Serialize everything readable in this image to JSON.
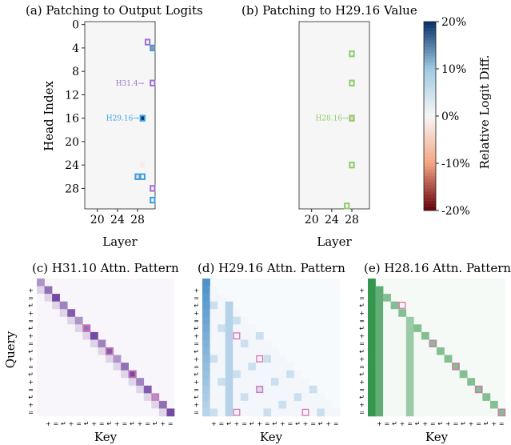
{
  "colors": {
    "background_cell": "#f6f6f6",
    "positive_max": "#08306b",
    "negative_max": "#67000d",
    "purple_box": "#a070d0",
    "blue_box": "#3aa0e0",
    "green_box": "#8ccc6a",
    "pink_box": "#e070b0",
    "purple_map": "#4a1486",
    "blue_map": "#2f7fc0",
    "green_map": "#1f8a3a"
  },
  "chart_data": [
    {
      "type": "heatmap",
      "title": "(a) Patching to Output Logits",
      "xlabel": "Layer",
      "ylabel": "Head Index",
      "xticks": [
        20,
        24,
        28
      ],
      "yticks": [
        0,
        4,
        8,
        12,
        16,
        20,
        24,
        28
      ],
      "xlim": [
        18,
        31
      ],
      "ylim": [
        0,
        31
      ],
      "cells": [
        {
          "layer": 31,
          "head": 4,
          "value": -0.12
        },
        {
          "layer": 29,
          "head": 16,
          "value": 0.22
        },
        {
          "layer": 28,
          "head": 26,
          "value": -0.03
        },
        {
          "layer": 29,
          "head": 24,
          "value": -0.01
        }
      ],
      "boxes": [
        {
          "layer": 30,
          "head": 3,
          "color": "purple"
        },
        {
          "layer": 31,
          "head": 4,
          "color": "blue"
        },
        {
          "layer": 31,
          "head": 10,
          "color": "purple"
        },
        {
          "layer": 29,
          "head": 16,
          "color": "blue"
        },
        {
          "layer": 28,
          "head": 26,
          "color": "blue"
        },
        {
          "layer": 29,
          "head": 26,
          "color": "blue"
        },
        {
          "layer": 31,
          "head": 28,
          "color": "purple"
        },
        {
          "layer": 31,
          "head": 30,
          "color": "blue"
        }
      ],
      "annotations": [
        {
          "text": "H31.4→",
          "color": "purple"
        },
        {
          "text": "H29.16→",
          "color": "blue"
        }
      ]
    },
    {
      "type": "heatmap",
      "title": "(b) Patching to H29.16 Value",
      "xlabel": "Layer",
      "xticks": [
        20,
        24,
        28
      ],
      "xlim": [
        18,
        31
      ],
      "ylim": [
        0,
        31
      ],
      "cells": [
        {
          "layer": 28,
          "head": 16,
          "value": -0.05
        }
      ],
      "boxes": [
        {
          "layer": 28,
          "head": 5,
          "color": "green"
        },
        {
          "layer": 28,
          "head": 10,
          "color": "green"
        },
        {
          "layer": 28,
          "head": 16,
          "color": "green"
        },
        {
          "layer": 28,
          "head": 24,
          "color": "green"
        },
        {
          "layer": 27,
          "head": 31,
          "color": "green"
        }
      ],
      "annotations": [
        {
          "text": "H28.16→",
          "color": "green"
        }
      ]
    },
    {
      "type": "heatmap",
      "title": "Colorbar",
      "ylabel": "Relative Logit Diff.",
      "ticks": [
        "20%",
        "10%",
        "0%",
        "-10%",
        "-20%"
      ],
      "range": [
        -0.2,
        0.2
      ]
    },
    {
      "type": "heatmap",
      "title": "(c) H31.10 Attn. Pattern",
      "xlabel": "Key",
      "ylabel": "Query",
      "token_labels": [
        "+",
        "=",
        "↵",
        "+",
        "=",
        "↵",
        "+",
        "=",
        "↵",
        "+",
        "=",
        "↵",
        "+",
        "=",
        "↵",
        "+",
        "="
      ]
    },
    {
      "type": "heatmap",
      "title": "(d) H29.16 Attn. Pattern",
      "xlabel": "Key",
      "token_labels": [
        "+",
        "=",
        "↵",
        "+",
        "=",
        "↵",
        "+",
        "=",
        "↵",
        "+",
        "=",
        "↵",
        "+",
        "=",
        "↵",
        "+",
        "="
      ]
    },
    {
      "type": "heatmap",
      "title": "(e) H28.16 Attn. Pattern",
      "xlabel": "Key",
      "token_labels": [
        "+",
        "=",
        "↵",
        "+",
        "=",
        "↵",
        "+",
        "=",
        "↵",
        "+",
        "=",
        "↵",
        "+",
        "=",
        "↵",
        "+",
        "="
      ]
    }
  ]
}
